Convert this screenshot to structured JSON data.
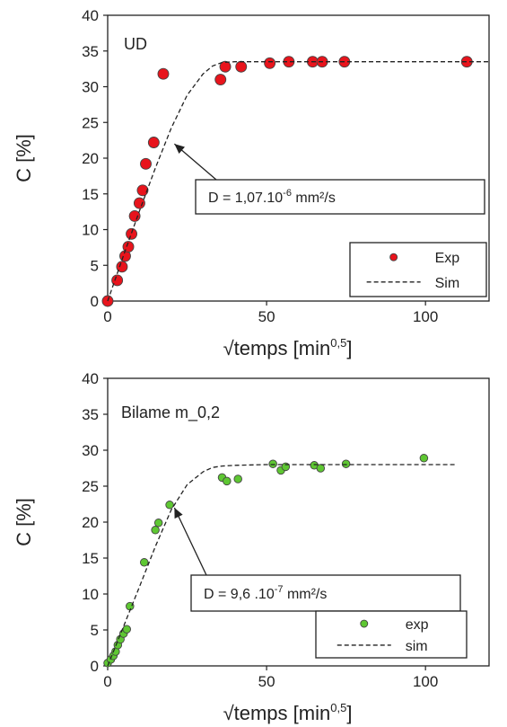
{
  "chart_data": [
    {
      "type": "scatter",
      "panel_label": "UD",
      "xlabel": "√temps [min",
      "xlabel_sup": "0,5",
      "xlabel_end": "]",
      "ylabel": "C [%]",
      "xlim": [
        0,
        120
      ],
      "ylim": [
        0,
        40
      ],
      "xticks": [
        "0",
        "50",
        "100"
      ],
      "xtick_values": [
        0,
        50,
        100
      ],
      "yticks": [
        "0",
        "5",
        "10",
        "15",
        "20",
        "25",
        "30",
        "35",
        "40"
      ],
      "ytick_values": [
        0,
        5,
        10,
        15,
        20,
        25,
        30,
        35,
        40
      ],
      "grid": false,
      "legend_position": "bottom-right",
      "series": [
        {
          "name": "Exp",
          "kind": "scatter",
          "color": "#e8141c",
          "x": [
            0,
            3,
            4.5,
            5.5,
            6.5,
            7.5,
            8.5,
            10,
            11,
            12,
            14.5,
            17.5,
            35.5,
            37,
            42,
            51,
            57,
            64.5,
            67.5,
            74.5,
            113
          ],
          "y": [
            0,
            2.9,
            4.8,
            6.3,
            7.6,
            9.4,
            11.9,
            13.7,
            15.5,
            19.2,
            22.2,
            31.8,
            31,
            32.8,
            32.8,
            33.3,
            33.5,
            33.5,
            33.5,
            33.5,
            33.5
          ]
        },
        {
          "name": "Sim",
          "kind": "line",
          "style": "dashed",
          "color": "#222222",
          "x": [
            0,
            5,
            10,
            15,
            20,
            25,
            30,
            33,
            36,
            40,
            50,
            60,
            80,
            100,
            120
          ],
          "y": [
            0,
            6.4,
            12.6,
            18.6,
            24.2,
            28.8,
            31.8,
            32.9,
            33.4,
            33.5,
            33.5,
            33.5,
            33.5,
            33.5,
            33.5
          ]
        }
      ],
      "annotation": {
        "text_before": "D = 1,07.10",
        "sup": "-6",
        "text_after": " mm²/s",
        "arrow_target": [
          21,
          22
        ]
      }
    },
    {
      "type": "scatter",
      "panel_label": "Bilame m_0,2",
      "xlabel": "√temps [min",
      "xlabel_sup": "0,5",
      "xlabel_end": "]",
      "ylabel": "C [%]",
      "xlim": [
        0,
        120
      ],
      "ylim": [
        0,
        40
      ],
      "xticks": [
        "0",
        "50",
        "100"
      ],
      "xtick_values": [
        0,
        50,
        100
      ],
      "yticks": [
        "0",
        "5",
        "10",
        "15",
        "20",
        "25",
        "30",
        "35",
        "40"
      ],
      "ytick_values": [
        0,
        5,
        10,
        15,
        20,
        25,
        30,
        35,
        40
      ],
      "grid": false,
      "legend_position": "bottom-right",
      "series": [
        {
          "name": "exp",
          "kind": "scatter",
          "color": "#5ec732",
          "x": [
            0,
            1,
            1.8,
            2.5,
            3.2,
            4,
            5,
            6,
            7,
            11.5,
            15,
            16,
            19.5,
            36,
            37.5,
            41,
            52,
            54.5,
            56,
            65,
            67,
            75,
            99.5
          ],
          "y": [
            0.4,
            0.9,
            1.4,
            2,
            2.9,
            3.7,
            4.5,
            5.1,
            8.3,
            14.4,
            18.9,
            19.9,
            22.4,
            26.2,
            25.7,
            26,
            28.1,
            27.2,
            27.7,
            27.9,
            27.5,
            28.1,
            28.9
          ]
        },
        {
          "name": "sim",
          "kind": "line",
          "style": "dashed",
          "color": "#222222",
          "x": [
            0,
            5,
            10,
            15,
            20,
            25,
            30,
            33,
            36,
            40,
            50,
            60,
            80,
            100,
            110
          ],
          "y": [
            0,
            5.5,
            11,
            16.6,
            21.7,
            25.2,
            27,
            27.6,
            27.8,
            27.9,
            28,
            28,
            28,
            28,
            28
          ]
        }
      ],
      "annotation": {
        "text_before": "D = 9,6 .10",
        "sup": "-7",
        "text_after": " mm²/s",
        "arrow_target": [
          21,
          22
        ]
      }
    }
  ]
}
